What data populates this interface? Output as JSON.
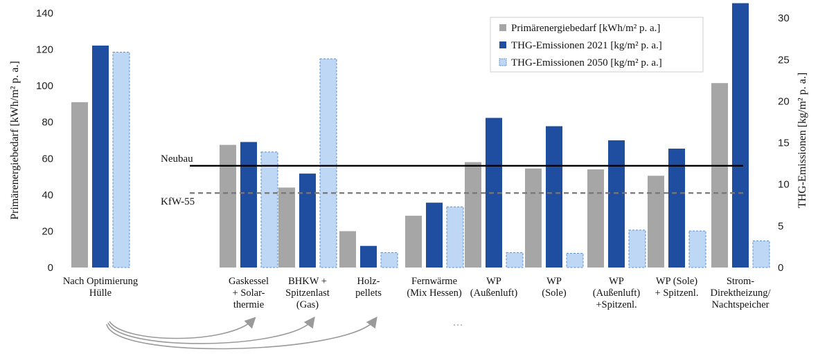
{
  "chart_data": {
    "type": "bar",
    "categories": [
      [
        "Nach Optimierung",
        "Hülle"
      ],
      [
        "Gaskessel",
        "+ Solar-",
        "thermie"
      ],
      [
        "BHKW +",
        "Spitzenlast",
        "(Gas)"
      ],
      [
        "Holz-",
        "pellets"
      ],
      [
        "Fernwärme",
        "(Mix Hessen)"
      ],
      [
        "WP",
        "(Außenluft)"
      ],
      [
        "WP",
        "(Sole)"
      ],
      [
        "WP",
        "(Außenluft)",
        "+Spitzenl."
      ],
      [
        "WP (Sole)",
        "+ Spitzenl."
      ],
      [
        "Strom-",
        "Direktheizung/",
        "Nachtspeicher"
      ]
    ],
    "series": [
      {
        "name": "Primärenergiebedarf [kWh/m² p. a.]",
        "axis": "left",
        "values": [
          91,
          67.5,
          44,
          20,
          28.5,
          58,
          54.5,
          54,
          50.5,
          101.5
        ],
        "color": "#a6a6a6"
      },
      {
        "name": "THG-Emissionen 2021 [kg/m² p. a.]",
        "axis": "right",
        "values": [
          26.7,
          15.1,
          11.3,
          2.6,
          7.8,
          18,
          17,
          15.3,
          14.3,
          31.8
        ],
        "color": "#1f4ea1"
      },
      {
        "name": "THG-Emissionen 2050 [kg/m² p. a.]",
        "axis": "right",
        "values": [
          25.9,
          13.9,
          25.1,
          1.8,
          7.3,
          1.8,
          1.7,
          4.5,
          4.4,
          3.2
        ],
        "color": "#bdd7f5"
      }
    ],
    "ylabel": "Primärenergiebedarf [kWh/m² p. a.]",
    "y2label": "THG-Emissionen [kg/m² p. a.]",
    "ylim": [
      0,
      140
    ],
    "y2lim": [
      0,
      31.1
    ],
    "yticks": [
      "0",
      "20",
      "40",
      "60",
      "80",
      "100",
      "120",
      "140"
    ],
    "y2ticks": [
      "0",
      "5",
      "10",
      "15",
      "20",
      "25",
      "30"
    ],
    "reference_lines": [
      {
        "label": "Neubau",
        "value": 56,
        "style": "solid"
      },
      {
        "label": "KfW-55",
        "value": 41,
        "style": "dashed"
      }
    ],
    "legend_position": "top-right",
    "grid": false,
    "ellipsis": "…"
  }
}
